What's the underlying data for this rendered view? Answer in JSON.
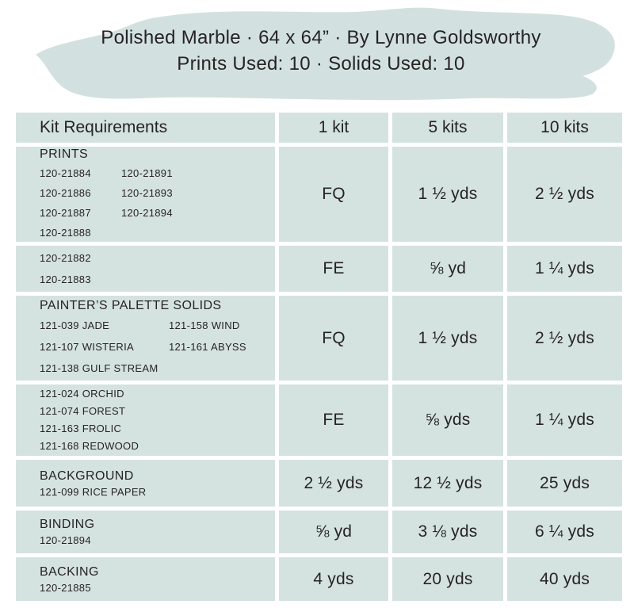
{
  "header": {
    "title_line1": "Polished Marble · 64 x 64” · By Lynne Goldsworthy",
    "title_line2": "Prints Used: 10 · Solids Used: 10"
  },
  "colors": {
    "swash_bg": "#d2e1df",
    "cell_bg": "#d5e3e0",
    "text": "#262324"
  },
  "table": {
    "columns": [
      "Kit Requirements",
      "1 kit",
      "5 kits",
      "10 kits"
    ],
    "rows": [
      {
        "heading": "PRINTS",
        "codes_col1": [
          "120-21884",
          "120-21886",
          "120-21887",
          "120-21888"
        ],
        "codes_col2": [
          "120-21891",
          "120-21893",
          "120-21894"
        ],
        "kit1": "FQ",
        "kit5": "1 ½ yds",
        "kit10": "2 ½ yds"
      },
      {
        "heading": "",
        "codes_col1": [
          "120-21882",
          "120-21883"
        ],
        "codes_col2": [],
        "kit1": "FE",
        "kit5": "⅝ yd",
        "kit10": "1 ¼ yds"
      },
      {
        "heading": "PAINTER’S PALETTE SOLIDS",
        "codes_col1": [
          "121-039 JADE",
          "121-107 WISTERIA",
          "121-138 GULF STREAM"
        ],
        "codes_col2": [
          "121-158 WIND",
          "121-161 ABYSS"
        ],
        "kit1": "FQ",
        "kit5": "1 ½ yds",
        "kit10": "2 ½ yds"
      },
      {
        "heading": "",
        "codes_col1": [
          "121-024 ORCHID",
          "121-074 FOREST",
          "121-163 FROLIC",
          "121-168 REDWOOD"
        ],
        "codes_col2": [],
        "kit1": "FE",
        "kit5": "⅝ yds",
        "kit10": "1 ¼ yds"
      },
      {
        "heading": "BACKGROUND",
        "codes_col1": [
          "121-099 RICE PAPER"
        ],
        "codes_col2": [],
        "kit1": "2 ½ yds",
        "kit5": "12 ½ yds",
        "kit10": "25 yds"
      },
      {
        "heading": "BINDING",
        "codes_col1": [
          "120-21894"
        ],
        "codes_col2": [],
        "kit1": "⅝ yd",
        "kit5": "3 ⅛ yds",
        "kit10": "6 ¼ yds"
      },
      {
        "heading": "BACKING",
        "codes_col1": [
          "120-21885"
        ],
        "codes_col2": [],
        "kit1": "4 yds",
        "kit5": "20 yds",
        "kit10": "40 yds"
      }
    ]
  }
}
